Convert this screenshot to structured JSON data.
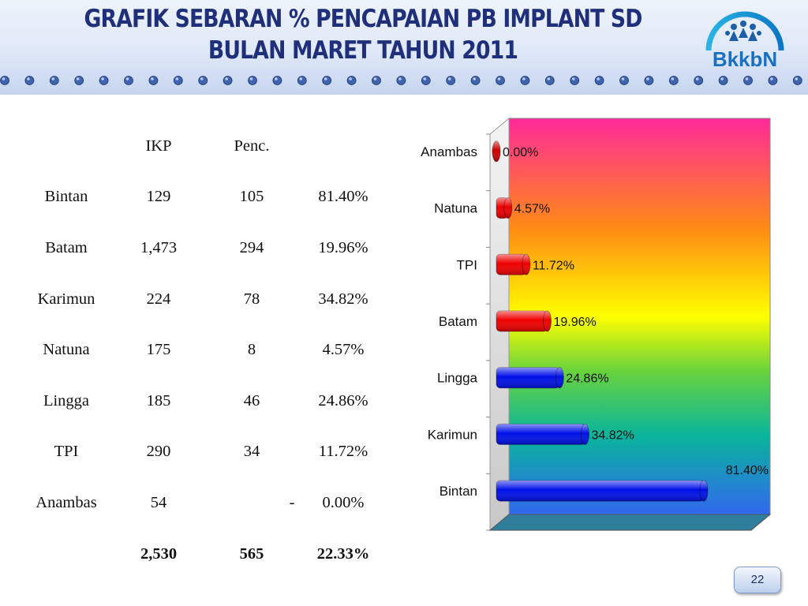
{
  "header": {
    "title_line1": "GRAFIK SEBARAN % PENCAPAIAN PB IMPLANT SD",
    "title_line2": "BULAN MARET TAHUN  2011",
    "logo_text": "BkkbN"
  },
  "table": {
    "headers": [
      "",
      "IKP",
      "Penc.",
      ""
    ],
    "rows": [
      {
        "name": "Bintan",
        "ikp": "129",
        "penc": "105",
        "dash": "",
        "pct": "81.40%"
      },
      {
        "name": "Batam",
        "ikp": "1,473",
        "penc": "294",
        "dash": "",
        "pct": "19.96%"
      },
      {
        "name": "Karimun",
        "ikp": "224",
        "penc": "78",
        "dash": "",
        "pct": "34.82%"
      },
      {
        "name": "Natuna",
        "ikp": "175",
        "penc": "8",
        "dash": "",
        "pct": "4.57%"
      },
      {
        "name": "Lingga",
        "ikp": "185",
        "penc": "46",
        "dash": "",
        "pct": "24.86%"
      },
      {
        "name": "TPI",
        "ikp": "290",
        "penc": "34",
        "dash": "",
        "pct": "11.72%"
      },
      {
        "name": "Anambas",
        "ikp": "54",
        "penc": "",
        "dash": "-",
        "pct": "0.00%"
      }
    ],
    "total": {
      "ikp": "2,530",
      "penc": "565",
      "pct": "22.33%"
    }
  },
  "chart_data": {
    "type": "bar",
    "orientation": "horizontal",
    "categories": [
      "Anambas",
      "Natuna",
      "TPI",
      "Batam",
      "Lingga",
      "Karimun",
      "Bintan"
    ],
    "values": [
      0.0,
      4.57,
      11.72,
      19.96,
      24.86,
      34.82,
      81.4
    ],
    "labels": [
      "0.00%",
      "4.57%",
      "11.72%",
      "19.96%",
      "24.86%",
      "34.82%",
      "81.40%"
    ],
    "bar_colors": [
      "#cc0000",
      "#ee0000",
      "#ee0000",
      "#ee0000",
      "#0010e8",
      "#0010e8",
      "#0010e8"
    ],
    "xlim": [
      0,
      100
    ],
    "title": "",
    "xlabel": "",
    "ylabel": ""
  },
  "footer": {
    "page_number": "22"
  }
}
